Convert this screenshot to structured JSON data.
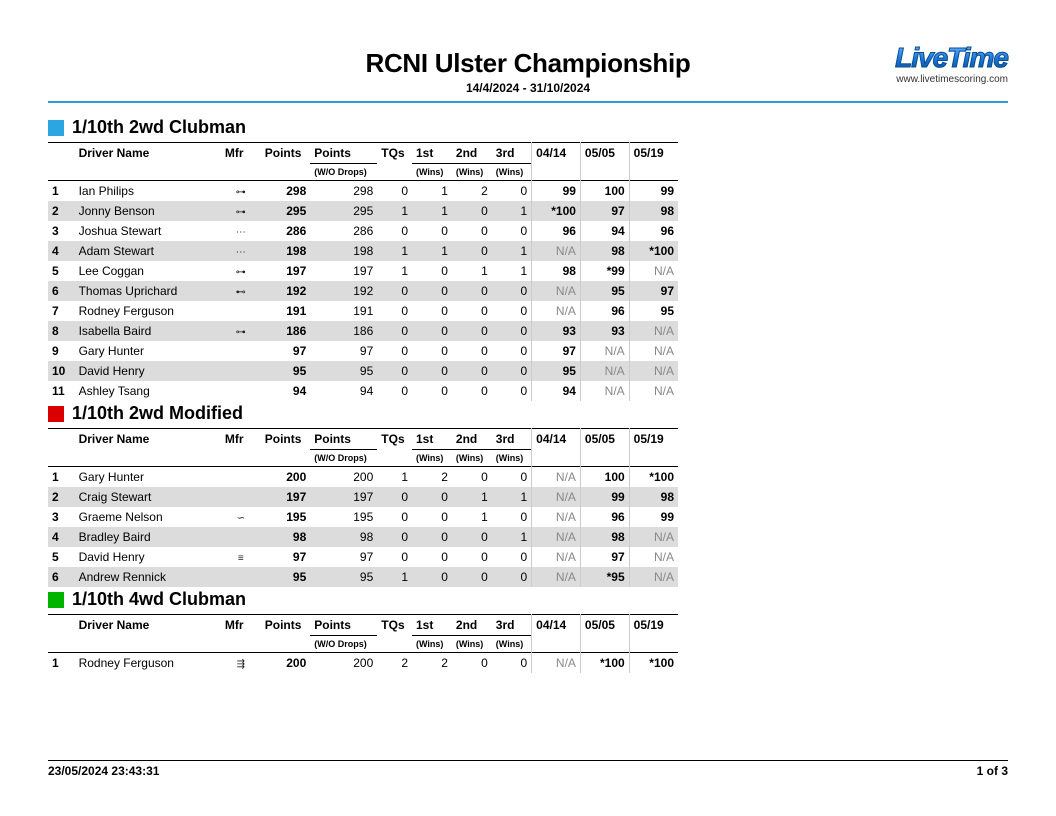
{
  "colors": {
    "accent_rule": "#2a9fd6",
    "row_alt": "#dcdcdc",
    "muted_text": "#888888"
  },
  "header": {
    "title": "RCNI Ulster Championship",
    "date_range": "14/4/2024 - 31/10/2024",
    "logo_text": "LiveTime",
    "logo_url": "www.livetimescoring.com"
  },
  "columns": {
    "driver": "Driver Name",
    "mfr": "Mfr",
    "points": "Points",
    "points_drop": "Points",
    "points_drop_sub": "(W/O Drops)",
    "tqs": "TQs",
    "first": "1st",
    "second": "2nd",
    "third": "3rd",
    "wins_sub": "(Wins)",
    "events": [
      "04/14",
      "05/05",
      "05/19"
    ]
  },
  "groups": [
    {
      "title": "1/10th 2wd Clubman",
      "swatch": "#2aa7e0",
      "rows": [
        {
          "pos": "1",
          "driver": "Ian Philips",
          "mfr": "⊶",
          "pts": "298",
          "pts_nd": "298",
          "tqs": "0",
          "w1": "1",
          "w2": "2",
          "w3": "0",
          "ev": [
            "99",
            "100",
            "99"
          ],
          "ev_dim": [
            false,
            false,
            false
          ]
        },
        {
          "pos": "2",
          "driver": "Jonny Benson",
          "mfr": "⊶",
          "pts": "295",
          "pts_nd": "295",
          "tqs": "1",
          "w1": "1",
          "w2": "0",
          "w3": "1",
          "ev": [
            "*100",
            "97",
            "98"
          ],
          "ev_dim": [
            false,
            false,
            false
          ]
        },
        {
          "pos": "3",
          "driver": "Joshua Stewart",
          "mfr": "⋯",
          "pts": "286",
          "pts_nd": "286",
          "tqs": "0",
          "w1": "0",
          "w2": "0",
          "w3": "0",
          "ev": [
            "96",
            "94",
            "96"
          ],
          "ev_dim": [
            false,
            false,
            false
          ]
        },
        {
          "pos": "4",
          "driver": "Adam Stewart",
          "mfr": "⋯",
          "pts": "198",
          "pts_nd": "198",
          "tqs": "1",
          "w1": "1",
          "w2": "0",
          "w3": "1",
          "ev": [
            "N/A",
            "98",
            "*100"
          ],
          "ev_dim": [
            true,
            false,
            false
          ]
        },
        {
          "pos": "5",
          "driver": "Lee Coggan",
          "mfr": "⊶",
          "pts": "197",
          "pts_nd": "197",
          "tqs": "1",
          "w1": "0",
          "w2": "1",
          "w3": "1",
          "ev": [
            "98",
            "*99",
            "N/A"
          ],
          "ev_dim": [
            false,
            false,
            true
          ]
        },
        {
          "pos": "6",
          "driver": "Thomas Uprichard",
          "mfr": "⊷",
          "pts": "192",
          "pts_nd": "192",
          "tqs": "0",
          "w1": "0",
          "w2": "0",
          "w3": "0",
          "ev": [
            "N/A",
            "95",
            "97"
          ],
          "ev_dim": [
            true,
            false,
            false
          ]
        },
        {
          "pos": "7",
          "driver": "Rodney Ferguson",
          "mfr": "",
          "pts": "191",
          "pts_nd": "191",
          "tqs": "0",
          "w1": "0",
          "w2": "0",
          "w3": "0",
          "ev": [
            "N/A",
            "96",
            "95"
          ],
          "ev_dim": [
            true,
            false,
            false
          ]
        },
        {
          "pos": "8",
          "driver": "Isabella Baird",
          "mfr": "⊶",
          "pts": "186",
          "pts_nd": "186",
          "tqs": "0",
          "w1": "0",
          "w2": "0",
          "w3": "0",
          "ev": [
            "93",
            "93",
            "N/A"
          ],
          "ev_dim": [
            false,
            false,
            true
          ]
        },
        {
          "pos": "9",
          "driver": "Gary Hunter",
          "mfr": "",
          "pts": "97",
          "pts_nd": "97",
          "tqs": "0",
          "w1": "0",
          "w2": "0",
          "w3": "0",
          "ev": [
            "97",
            "N/A",
            "N/A"
          ],
          "ev_dim": [
            false,
            true,
            true
          ]
        },
        {
          "pos": "10",
          "driver": "David Henry",
          "mfr": "",
          "pts": "95",
          "pts_nd": "95",
          "tqs": "0",
          "w1": "0",
          "w2": "0",
          "w3": "0",
          "ev": [
            "95",
            "N/A",
            "N/A"
          ],
          "ev_dim": [
            false,
            true,
            true
          ]
        },
        {
          "pos": "11",
          "driver": "Ashley Tsang",
          "mfr": "",
          "pts": "94",
          "pts_nd": "94",
          "tqs": "0",
          "w1": "0",
          "w2": "0",
          "w3": "0",
          "ev": [
            "94",
            "N/A",
            "N/A"
          ],
          "ev_dim": [
            false,
            true,
            true
          ]
        }
      ]
    },
    {
      "title": "1/10th 2wd Modified",
      "swatch": "#da0000",
      "rows": [
        {
          "pos": "1",
          "driver": "Gary Hunter",
          "mfr": "",
          "pts": "200",
          "pts_nd": "200",
          "tqs": "1",
          "w1": "2",
          "w2": "0",
          "w3": "0",
          "ev": [
            "N/A",
            "100",
            "*100"
          ],
          "ev_dim": [
            true,
            false,
            false
          ]
        },
        {
          "pos": "2",
          "driver": "Craig Stewart",
          "mfr": "",
          "pts": "197",
          "pts_nd": "197",
          "tqs": "0",
          "w1": "0",
          "w2": "1",
          "w3": "1",
          "ev": [
            "N/A",
            "99",
            "98"
          ],
          "ev_dim": [
            true,
            false,
            false
          ]
        },
        {
          "pos": "3",
          "driver": "Graeme Nelson",
          "mfr": "∽",
          "pts": "195",
          "pts_nd": "195",
          "tqs": "0",
          "w1": "0",
          "w2": "1",
          "w3": "0",
          "ev": [
            "N/A",
            "96",
            "99"
          ],
          "ev_dim": [
            true,
            false,
            false
          ]
        },
        {
          "pos": "4",
          "driver": "Bradley Baird",
          "mfr": "",
          "pts": "98",
          "pts_nd": "98",
          "tqs": "0",
          "w1": "0",
          "w2": "0",
          "w3": "1",
          "ev": [
            "N/A",
            "98",
            "N/A"
          ],
          "ev_dim": [
            true,
            false,
            true
          ]
        },
        {
          "pos": "5",
          "driver": "David Henry",
          "mfr": "≡",
          "pts": "97",
          "pts_nd": "97",
          "tqs": "0",
          "w1": "0",
          "w2": "0",
          "w3": "0",
          "ev": [
            "N/A",
            "97",
            "N/A"
          ],
          "ev_dim": [
            true,
            false,
            true
          ]
        },
        {
          "pos": "6",
          "driver": "Andrew Rennick",
          "mfr": "",
          "pts": "95",
          "pts_nd": "95",
          "tqs": "1",
          "w1": "0",
          "w2": "0",
          "w3": "0",
          "ev": [
            "N/A",
            "*95",
            "N/A"
          ],
          "ev_dim": [
            true,
            false,
            true
          ]
        }
      ]
    },
    {
      "title": "1/10th 4wd Clubman",
      "swatch": "#00b400",
      "rows": [
        {
          "pos": "1",
          "driver": "Rodney Ferguson",
          "mfr": "⇶",
          "pts": "200",
          "pts_nd": "200",
          "tqs": "2",
          "w1": "2",
          "w2": "0",
          "w3": "0",
          "ev": [
            "N/A",
            "*100",
            "*100"
          ],
          "ev_dim": [
            true,
            false,
            false
          ]
        }
      ]
    }
  ],
  "footer": {
    "timestamp": "23/05/2024 23:43:31",
    "page": "1 of 3"
  }
}
